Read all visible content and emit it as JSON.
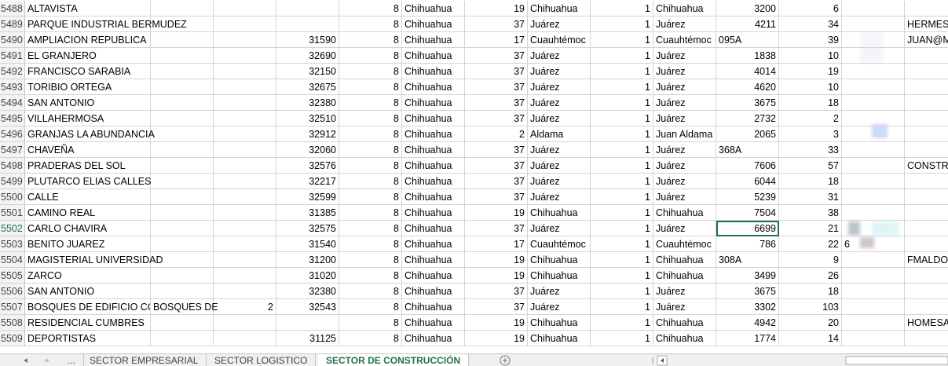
{
  "sheet": {
    "rows": [
      [
        5488,
        "ALTAVISTA",
        null,
        null,
        null,
        8,
        "Chihuahua",
        19,
        "Chihuahua",
        1,
        "Chihuahua",
        3200,
        6,
        null,
        null
      ],
      [
        5489,
        "PARQUE INDUSTRIAL BERMUDEZ",
        null,
        null,
        null,
        8,
        "Chihuahua",
        37,
        "Juárez",
        1,
        "Juárez",
        4211,
        34,
        null,
        "HERMES_"
      ],
      [
        5490,
        "AMPLIACION REPUBLICA",
        null,
        null,
        31590,
        8,
        "Chihuahua",
        17,
        "Cuauhtémoc",
        1,
        "Cuauhtémoc",
        "095A",
        39,
        null,
        "JUAN@M"
      ],
      [
        5491,
        "EL GRANJERO",
        null,
        null,
        32690,
        8,
        "Chihuahua",
        37,
        "Juárez",
        1,
        "Juárez",
        1838,
        10,
        null,
        null
      ],
      [
        5492,
        "FRANCISCO SARABIA",
        null,
        null,
        32150,
        8,
        "Chihuahua",
        37,
        "Juárez",
        1,
        "Juárez",
        4014,
        19,
        null,
        null
      ],
      [
        5493,
        "TORIBIO ORTEGA",
        null,
        null,
        32675,
        8,
        "Chihuahua",
        37,
        "Juárez",
        1,
        "Juárez",
        4620,
        10,
        null,
        null
      ],
      [
        5494,
        "SAN ANTONIO",
        null,
        null,
        32380,
        8,
        "Chihuahua",
        37,
        "Juárez",
        1,
        "Juárez",
        3675,
        18,
        null,
        null
      ],
      [
        5495,
        "VILLAHERMOSA",
        null,
        null,
        32510,
        8,
        "Chihuahua",
        37,
        "Juárez",
        1,
        "Juárez",
        2732,
        2,
        null,
        null
      ],
      [
        5496,
        "GRANJAS LA ABUNDANCIA",
        null,
        null,
        32912,
        8,
        "Chihuahua",
        2,
        "Aldama",
        1,
        "Juan Aldama",
        2065,
        3,
        null,
        null
      ],
      [
        5497,
        "CHAVEÑA",
        null,
        null,
        32060,
        8,
        "Chihuahua",
        37,
        "Juárez",
        1,
        "Juárez",
        "368A",
        33,
        null,
        null
      ],
      [
        5498,
        "PRADERAS DEL SOL",
        null,
        null,
        32576,
        8,
        "Chihuahua",
        37,
        "Juárez",
        1,
        "Juárez",
        7606,
        57,
        null,
        "CONSTRU"
      ],
      [
        5499,
        "PLUTARCO ELIAS CALLES",
        null,
        null,
        32217,
        8,
        "Chihuahua",
        37,
        "Juárez",
        1,
        "Juárez",
        6044,
        18,
        null,
        null
      ],
      [
        5500,
        "CALLE",
        null,
        null,
        32599,
        8,
        "Chihuahua",
        37,
        "Juárez",
        1,
        "Juárez",
        5239,
        31,
        null,
        null
      ],
      [
        5501,
        "CAMINO REAL",
        null,
        null,
        31385,
        8,
        "Chihuahua",
        19,
        "Chihuahua",
        1,
        "Chihuahua",
        7504,
        38,
        null,
        null
      ],
      [
        5502,
        "CARLO CHAVIRA",
        null,
        null,
        32575,
        8,
        "Chihuahua",
        37,
        "Juárez",
        1,
        "Juárez",
        6699,
        21,
        null,
        null
      ],
      [
        5503,
        "BENITO JUAREZ",
        null,
        null,
        31540,
        8,
        "Chihuahua",
        17,
        "Cuauhtémoc",
        1,
        "Cuauhtémoc",
        786,
        22,
        "6",
        null
      ],
      [
        5504,
        "MAGISTERIAL UNIVERSIDAD",
        null,
        null,
        31200,
        8,
        "Chihuahua",
        19,
        "Chihuahua",
        1,
        "Chihuahua",
        "308A",
        9,
        null,
        "FMALDO"
      ],
      [
        5505,
        "ZARCO",
        null,
        null,
        31020,
        8,
        "Chihuahua",
        19,
        "Chihuahua",
        1,
        "Chihuahua",
        3499,
        26,
        null,
        null
      ],
      [
        5506,
        "SAN ANTONIO",
        null,
        null,
        32380,
        8,
        "Chihuahua",
        37,
        "Juárez",
        1,
        "Juárez",
        3675,
        18,
        null,
        null
      ],
      [
        5507,
        "BOSQUES DE EDIFICIO CO",
        "BOSQUES DE",
        2,
        32543,
        8,
        "Chihuahua",
        37,
        "Juárez",
        1,
        "Juárez",
        3302,
        103,
        null,
        null
      ],
      [
        5508,
        "RESIDENCIAL CUMBRES",
        null,
        null,
        null,
        8,
        "Chihuahua",
        19,
        "Chihuahua",
        1,
        "Chihuahua",
        4942,
        20,
        null,
        "HOMESA"
      ],
      [
        5509,
        "DEPORTISTAS",
        null,
        null,
        31125,
        8,
        "Chihuahua",
        19,
        "Chihuahua",
        1,
        "Chihuahua",
        1774,
        14,
        null,
        null
      ]
    ],
    "tabs": [
      "...",
      "SECTOR EMPRESARIAL",
      "SECTOR LOGISTICO",
      "SECTOR DE CONSTRUCCIÓN"
    ]
  }
}
